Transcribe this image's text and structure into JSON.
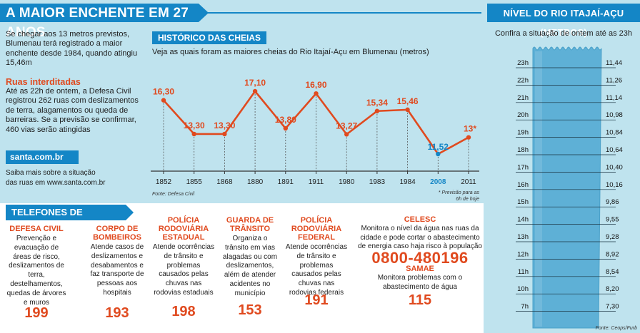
{
  "header": {
    "title": "A MAIOR ENCHENTE EM 27 ANOS"
  },
  "intro": "Se chegar aos 13 metros previstos, Blumenau terá registrado a maior enchente desde 1984, quando atingiu 15,46m",
  "roads": {
    "title": "Ruas interditadas",
    "text": "Até as 22h de ontem, a Defesa Civil registrou 262 ruas com deslizamentos de terra, alagamentos ou queda de barreiras. Se a previsão se confirmar, 460 vias serão atingidas"
  },
  "santa": {
    "badge": "santa.com.br",
    "line1": "Saiba mais sobre a situação",
    "line2": "das ruas em www.santa.com.br"
  },
  "history": {
    "badge": "HISTÓRICO DAS CHEIAS",
    "subtitle": "Veja as quais foram as maiores cheias do Rio Itajaí-Açu em Blumenau (metros)",
    "source": "Fonte: Defesa Civil",
    "footnote_line1": "* Previsão para as",
    "footnote_line2": "6h de hoje"
  },
  "chart_data": {
    "type": "line",
    "categories": [
      "1852",
      "1855",
      "1868",
      "1880",
      "1891",
      "1911",
      "1980",
      "1983",
      "1984",
      "2008",
      "2011"
    ],
    "values": [
      16.3,
      13.3,
      13.3,
      17.1,
      13.8,
      16.9,
      13.27,
      15.34,
      15.46,
      11.52,
      13.0
    ],
    "labels": [
      "16,30",
      "13,30",
      "13,30",
      "17,10",
      "13,80",
      "16,90",
      "13,27",
      "15,34",
      "15,46",
      "11,52",
      "13*"
    ],
    "highlight_category": "2008",
    "colors": {
      "line": "#e04a1f",
      "highlight": "#1486c6",
      "text": "#e04a1f"
    }
  },
  "emergency": {
    "title": "TELEFONES DE  EMERGÊNCIA",
    "services": [
      {
        "name": "DEFESA CIVIL",
        "desc": "Prevenção e evacuação de áreas de risco, deslizamentos de terra, destelhamentos, quedas de árvores e muros",
        "number": "199"
      },
      {
        "name": "CORPO DE BOMBEIROS",
        "desc": "Atende casos de deslizamentos e desabamentos e faz transporte de pessoas aos hospitais",
        "number": "193"
      },
      {
        "name": "POLÍCIA RODOVIÁRIA ESTADUAL",
        "desc": "Atende ocorrências de trânsito e problemas causados pelas chuvas nas rodovias estaduais",
        "number": "198"
      },
      {
        "name": "GUARDA DE TRÂNSITO",
        "desc": "Organiza o trânsito em vias alagadas ou com deslizamentos, além de atender acidentes no município",
        "number": "153"
      },
      {
        "name": "POLÍCIA RODOVIÁRIA FEDERAL",
        "desc": "Atende ocorrências de trânsito e problemas causados pelas chuvas nas rodovias federais",
        "number": "191"
      }
    ],
    "celesc": {
      "name": "CELESC",
      "desc": "Monitora o nível da água nas ruas da cidade e pode cortar o abastecimento de energia caso haja risco à população",
      "phone": "0800-480196"
    },
    "samae": {
      "name": "SAMAE",
      "desc": "Monitora problemas com o abastecimento de água",
      "number": "115"
    }
  },
  "river": {
    "title": "NÍVEL DO RIO ITAJAÍ-AÇU (METROS)",
    "subtitle": "Confira a situação de ontem até as 23h",
    "source": "Fonte: Ceops/Furb",
    "levels": [
      {
        "hour": "23h",
        "value": "11,44"
      },
      {
        "hour": "22h",
        "value": "11,26"
      },
      {
        "hour": "21h",
        "value": "11,14"
      },
      {
        "hour": "20h",
        "value": "10,98"
      },
      {
        "hour": "19h",
        "value": "10,84"
      },
      {
        "hour": "18h",
        "value": "10,64"
      },
      {
        "hour": "17h",
        "value": "10,40"
      },
      {
        "hour": "16h",
        "value": "10,16"
      },
      {
        "hour": "15h",
        "value": "9,86"
      },
      {
        "hour": "14h",
        "value": "9,55"
      },
      {
        "hour": "13h",
        "value": "9,28"
      },
      {
        "hour": "12h",
        "value": "8,92"
      },
      {
        "hour": "11h",
        "value": "8,54"
      },
      {
        "hour": "10h",
        "value": "8,20"
      },
      {
        "hour": "7h",
        "value": "7,30"
      }
    ],
    "colors": {
      "water": "#5eb0d6",
      "water_edge": "#4aa0c8"
    }
  }
}
